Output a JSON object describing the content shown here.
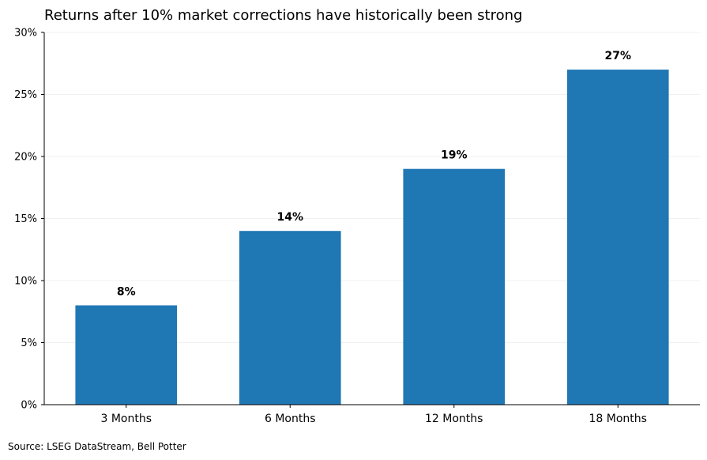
{
  "chart_data": {
    "type": "bar",
    "title": "Returns after 10% market corrections have historically been strong",
    "categories": [
      "3 Months",
      "6 Months",
      "12 Months",
      "18 Months"
    ],
    "values": [
      8,
      14,
      19,
      27
    ],
    "data_labels": [
      "8%",
      "14%",
      "19%",
      "27%"
    ],
    "xlabel": "",
    "ylabel": "",
    "ylim": [
      0,
      30
    ],
    "y_ticks": [
      0,
      5,
      10,
      15,
      20,
      25,
      30
    ],
    "y_tick_labels": [
      "0%",
      "5%",
      "10%",
      "15%",
      "20%",
      "25%",
      "30%"
    ],
    "grid": "horizontal",
    "legend": "none",
    "source": "Source: LSEG DataStream, Bell Potter"
  },
  "colors": {
    "bar": "#1f77b4",
    "axis": "#000000",
    "grid": "#ebebeb",
    "text": "#000000"
  }
}
